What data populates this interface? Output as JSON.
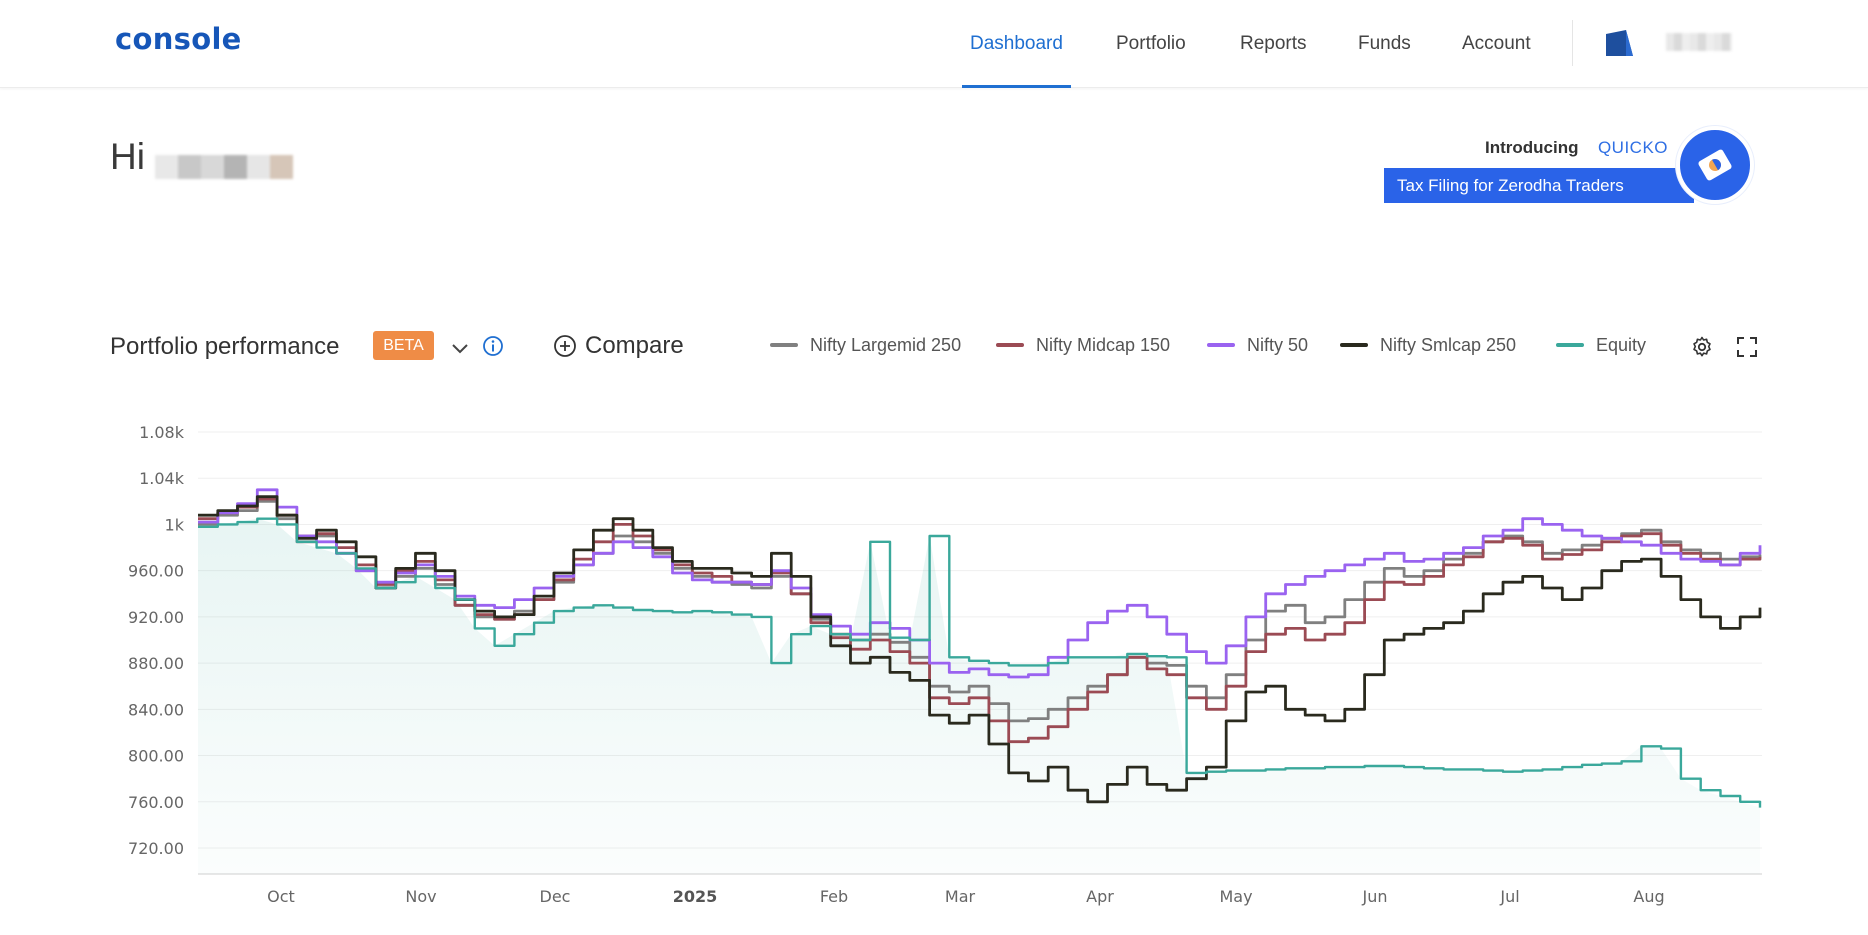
{
  "app": {
    "logo": "console"
  },
  "nav": {
    "items": [
      {
        "label": "Dashboard",
        "active": true
      },
      {
        "label": "Portfolio",
        "active": false
      },
      {
        "label": "Reports",
        "active": false
      },
      {
        "label": "Funds",
        "active": false
      },
      {
        "label": "Account",
        "active": false
      }
    ]
  },
  "greeting": {
    "text": "Hi"
  },
  "promo": {
    "intro": "Introducing",
    "brand": "QUICKO",
    "banner": "Tax Filing for Zerodha Traders"
  },
  "performance": {
    "title": "Portfolio performance",
    "badge": "BETA",
    "compare_label": "Compare"
  },
  "colors": {
    "brand": "#1656b8",
    "accent": "#1f6fd1",
    "beta": "#ef8c46",
    "promo": "#2a63e8"
  },
  "icons": [
    "chevron-down-icon",
    "info-icon",
    "plus-circle-icon",
    "gear-icon",
    "fullscreen-icon",
    "avatar-icon"
  ],
  "chart_data": {
    "type": "line",
    "x_ticks": [
      "Oct",
      "Nov",
      "Dec",
      "2025",
      "Feb",
      "Mar",
      "Apr",
      "May",
      "Jun",
      "Jul",
      "Aug"
    ],
    "y_ticks": [
      "1.08k",
      "1.04k",
      "1k",
      "960.00",
      "920.00",
      "880.00",
      "840.00",
      "800.00",
      "760.00",
      "720.00"
    ],
    "ylim": [
      720,
      1080
    ],
    "grid": true,
    "legend_position": "top-right",
    "series": [
      {
        "name": "Nifty Largemid 250",
        "color": "#808080",
        "values": [
          1000,
          1008,
          1012,
          1020,
          1005,
          985,
          990,
          975,
          960,
          945,
          955,
          962,
          948,
          930,
          920,
          918,
          925,
          935,
          950,
          965,
          975,
          990,
          985,
          975,
          962,
          955,
          950,
          948,
          945,
          955,
          940,
          918,
          905,
          900,
          905,
          898,
          885,
          860,
          855,
          860,
          845,
          830,
          832,
          840,
          850,
          860,
          870,
          885,
          880,
          878,
          860,
          850,
          870,
          900,
          925,
          930,
          915,
          920,
          935,
          950,
          962,
          955,
          960,
          970,
          975,
          985,
          990,
          985,
          975,
          978,
          982,
          988,
          992,
          995,
          985,
          978,
          975,
          970,
          972,
          974
        ]
      },
      {
        "name": "Nifty Midcap 150",
        "color": "#9b4b54",
        "values": [
          1005,
          1010,
          1015,
          1022,
          1008,
          990,
          992,
          980,
          965,
          948,
          960,
          968,
          952,
          930,
          922,
          918,
          922,
          935,
          952,
          970,
          985,
          1000,
          990,
          978,
          965,
          958,
          955,
          950,
          948,
          958,
          940,
          915,
          902,
          892,
          900,
          890,
          880,
          850,
          845,
          850,
          830,
          812,
          815,
          825,
          840,
          855,
          870,
          885,
          875,
          870,
          850,
          840,
          860,
          890,
          905,
          910,
          900,
          905,
          915,
          935,
          950,
          948,
          955,
          965,
          972,
          985,
          988,
          982,
          970,
          974,
          978,
          985,
          990,
          992,
          982,
          975,
          970,
          965,
          970,
          972
        ]
      },
      {
        "name": "Nifty 50",
        "color": "#9a63f0",
        "values": [
          1002,
          1010,
          1018,
          1030,
          1015,
          990,
          985,
          975,
          960,
          950,
          958,
          965,
          955,
          938,
          930,
          928,
          935,
          945,
          955,
          965,
          975,
          985,
          980,
          972,
          958,
          952,
          950,
          950,
          948,
          960,
          945,
          922,
          912,
          905,
          915,
          910,
          900,
          880,
          872,
          875,
          870,
          868,
          870,
          885,
          900,
          915,
          925,
          930,
          920,
          905,
          890,
          880,
          895,
          920,
          940,
          948,
          955,
          960,
          965,
          970,
          975,
          968,
          970,
          975,
          980,
          990,
          995,
          1005,
          1000,
          995,
          990,
          988,
          985,
          982,
          975,
          970,
          968,
          965,
          975,
          982
        ]
      },
      {
        "name": "Nifty Smlcap 250",
        "color": "#2a2a1e",
        "values": [
          1008,
          1012,
          1016,
          1024,
          1008,
          988,
          995,
          985,
          972,
          945,
          962,
          975,
          960,
          935,
          925,
          920,
          922,
          938,
          958,
          978,
          995,
          1005,
          995,
          980,
          968,
          962,
          962,
          958,
          955,
          975,
          955,
          920,
          895,
          880,
          885,
          872,
          865,
          835,
          828,
          835,
          810,
          785,
          778,
          790,
          770,
          760,
          775,
          790,
          775,
          770,
          780,
          790,
          830,
          855,
          860,
          840,
          835,
          830,
          840,
          870,
          900,
          905,
          910,
          915,
          925,
          940,
          950,
          955,
          945,
          935,
          945,
          960,
          968,
          970,
          955,
          935,
          920,
          910,
          920,
          928
        ]
      },
      {
        "name": "Equity",
        "color": "#3aa89b",
        "values": [
          998,
          1000,
          1002,
          1005,
          1000,
          985,
          980,
          975,
          962,
          945,
          950,
          955,
          945,
          935,
          910,
          895,
          905,
          915,
          925,
          928,
          930,
          928,
          926,
          925,
          924,
          925,
          924,
          922,
          920,
          880,
          905,
          912,
          905,
          900,
          985,
          902,
          900,
          990,
          885,
          882,
          880,
          878,
          878,
          880,
          885,
          885,
          885,
          888,
          886,
          885,
          785,
          786,
          787,
          787,
          788,
          789,
          789,
          790,
          790,
          791,
          791,
          790,
          789,
          788,
          788,
          787,
          786,
          787,
          788,
          790,
          792,
          793,
          795,
          808,
          806,
          780,
          770,
          765,
          760,
          755
        ]
      }
    ]
  }
}
